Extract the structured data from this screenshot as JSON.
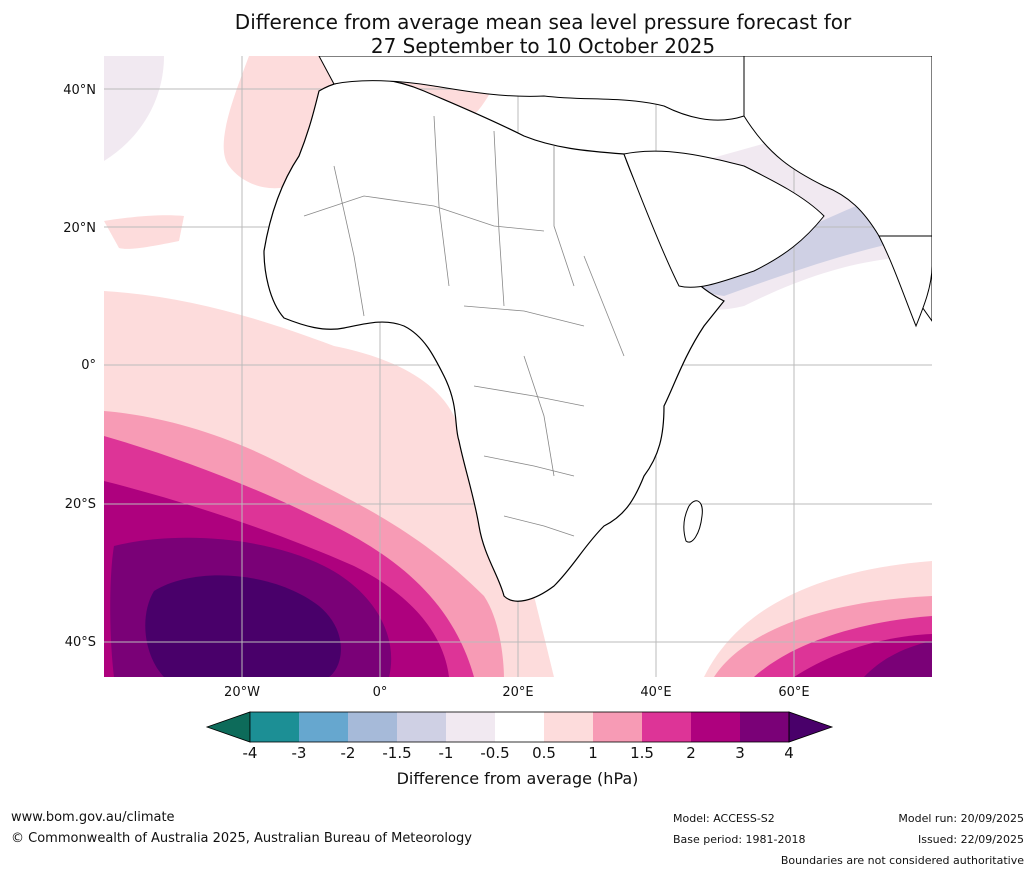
{
  "title_line1": "Difference from average mean sea level pressure forecast for",
  "title_line2": "27 September to 10 October 2025",
  "lat_labels": [
    "40°N",
    "20°N",
    "0°",
    "20°S",
    "40°S"
  ],
  "lon_labels": [
    "20°W",
    "0°",
    "20°E",
    "40°E",
    "60°E"
  ],
  "colorbar": {
    "title": "Difference from average (hPa)",
    "ticks": [
      "-4",
      "-3",
      "-2",
      "-1.5",
      "-1",
      "-0.5",
      "0.5",
      "1",
      "1.5",
      "2",
      "3",
      "4"
    ],
    "colors": [
      "#0d6b5a",
      "#1c8f95",
      "#66a7cf",
      "#a6bad9",
      "#cfd0e4",
      "#f1e9f1",
      "#ffffff",
      "#fddcdc",
      "#f79bb5",
      "#dd3497",
      "#ae017e",
      "#7a0177",
      "#49006a"
    ]
  },
  "footer": {
    "website": "www.bom.gov.au/climate",
    "copyright": "© Commonwealth of Australia 2025, Australian Bureau of Meteorology",
    "model": "Model: ACCESS-S2",
    "base_period": "Base period: 1981-2018",
    "model_run": "Model run: 20/09/2025",
    "issued": "Issued: 22/09/2025",
    "disclaimer": "Boundaries are not considered authoritative"
  }
}
